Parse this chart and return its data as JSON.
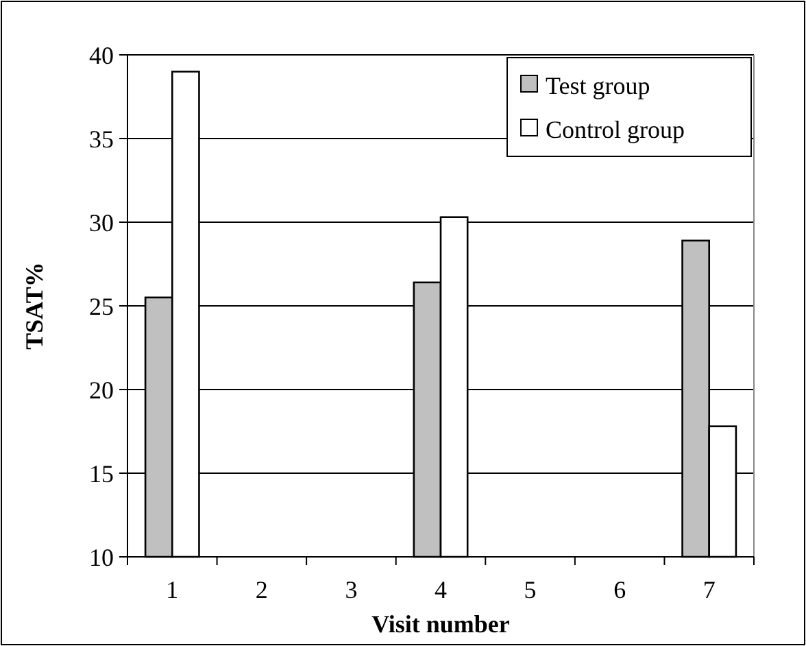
{
  "chart_data": {
    "type": "bar",
    "xlabel": "Visit number",
    "ylabel": "TSAT%",
    "categories": [
      "1",
      "2",
      "3",
      "4",
      "5",
      "6",
      "7"
    ],
    "series": [
      {
        "name": "Test group",
        "color": "#c0c0c0",
        "values": [
          25.5,
          null,
          null,
          26.4,
          null,
          null,
          28.9
        ]
      },
      {
        "name": "Control group",
        "color": "#ffffff",
        "values": [
          39,
          null,
          null,
          30.3,
          null,
          null,
          17.8
        ]
      }
    ],
    "ylim": [
      10,
      40
    ],
    "yticks": [
      10,
      15,
      20,
      25,
      30,
      35,
      40
    ],
    "grid": "y",
    "legend": "top right"
  }
}
